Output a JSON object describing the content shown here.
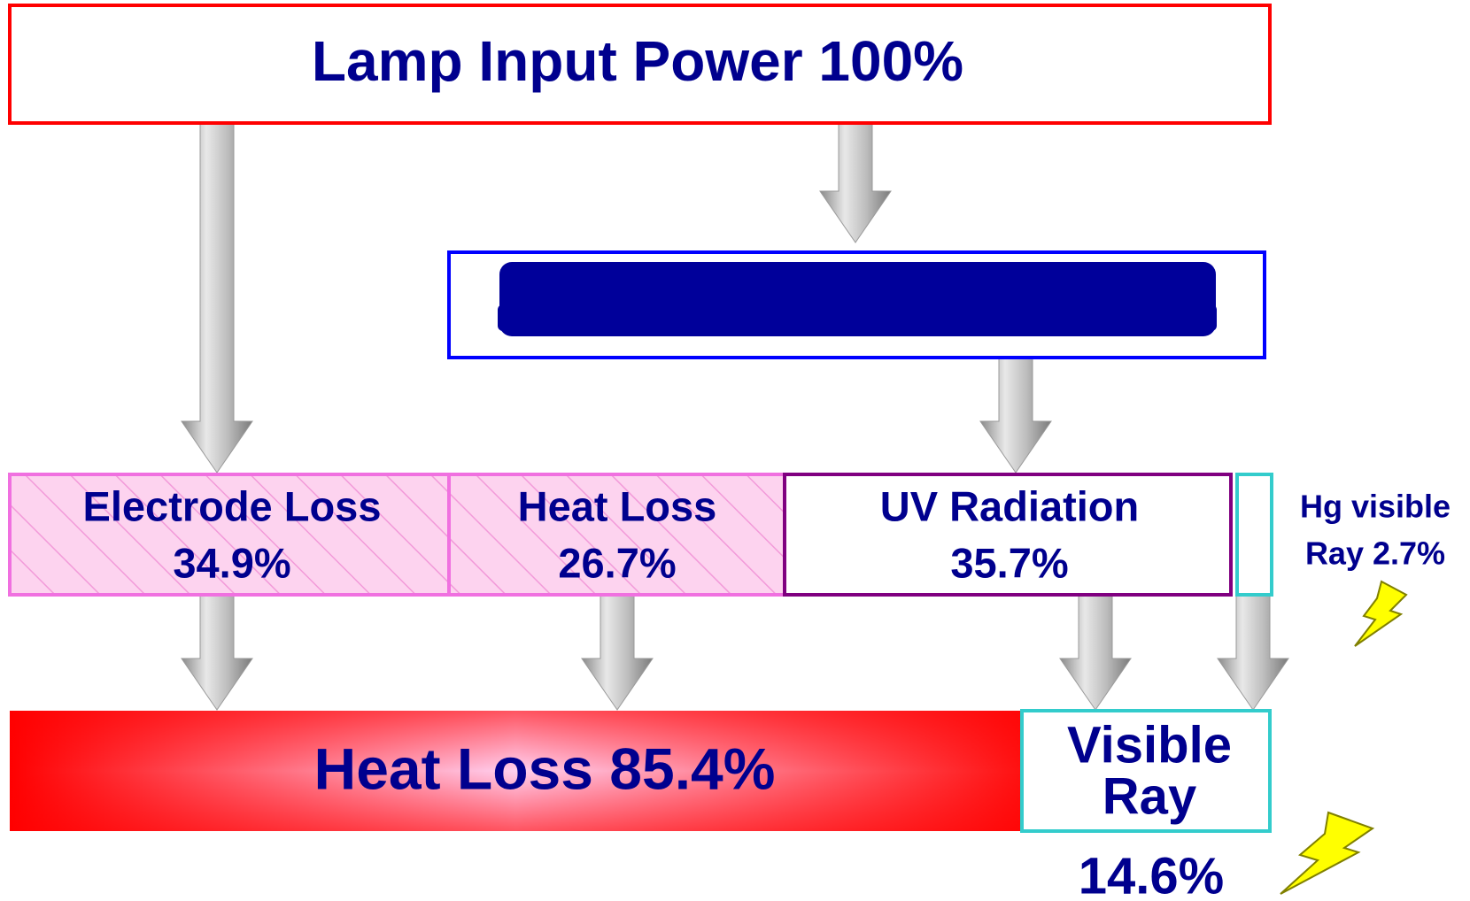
{
  "input": {
    "label": "Lamp Input Power 100%"
  },
  "split": [
    {
      "lines": [
        "Electrode Loss",
        "34.9%"
      ]
    },
    {
      "lines": [
        "Heat Loss",
        "26.7%"
      ]
    },
    {
      "lines": [
        "UV Radiation",
        "35.7%"
      ]
    },
    {
      "lines": [
        "Hg visible",
        "Ray 2.7%"
      ]
    }
  ],
  "output": [
    {
      "lines": [
        "Heat Loss 85.4%"
      ]
    },
    {
      "lines": [
        "Visible",
        "Ray"
      ]
    },
    {
      "lines": [
        "14.6%"
      ]
    }
  ]
}
